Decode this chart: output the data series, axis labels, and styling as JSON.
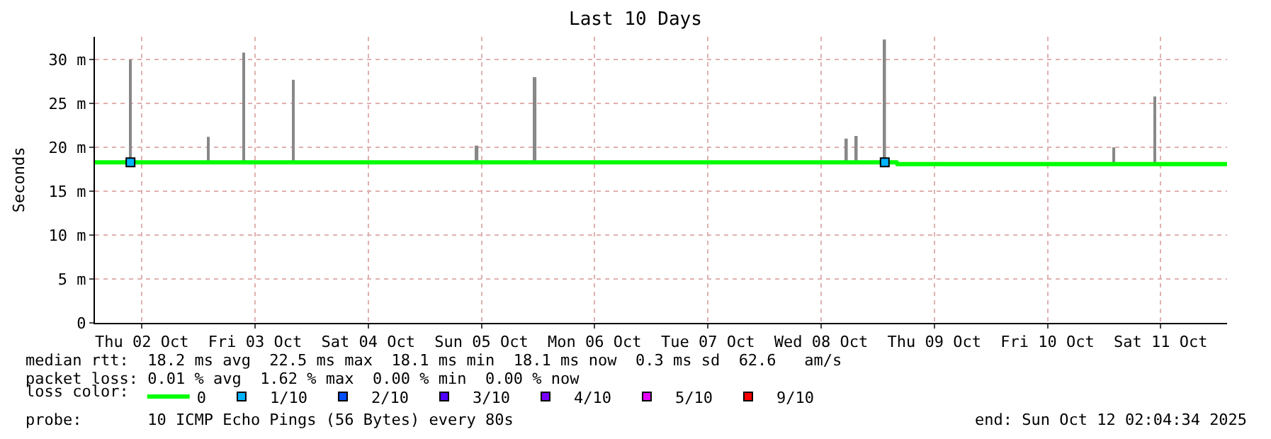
{
  "chart_data": {
    "type": "line",
    "title": "Last 10 Days",
    "ylabel": "Seconds",
    "legend_title": "loss color:",
    "xlim": [
      "2025-10-02T02:04",
      "2025-10-12T02:04"
    ],
    "xticks": [
      {
        "value": "2025-10-02T12:00",
        "label": "Thu 02 Oct"
      },
      {
        "value": "2025-10-03T12:00",
        "label": "Fri 03 Oct"
      },
      {
        "value": "2025-10-04T12:00",
        "label": "Sat 04 Oct"
      },
      {
        "value": "2025-10-05T12:00",
        "label": "Sun 05 Oct"
      },
      {
        "value": "2025-10-06T12:00",
        "label": "Mon 06 Oct"
      },
      {
        "value": "2025-10-07T12:00",
        "label": "Tue 07 Oct"
      },
      {
        "value": "2025-10-08T12:00",
        "label": "Wed 08 Oct"
      },
      {
        "value": "2025-10-09T12:00",
        "label": "Thu 09 Oct"
      },
      {
        "value": "2025-10-10T12:00",
        "label": "Fri 10 Oct"
      },
      {
        "value": "2025-10-11T12:00",
        "label": "Sat 11 Oct"
      }
    ],
    "ylim": [
      0,
      32.6
    ],
    "yticks": [
      {
        "value": 0,
        "label": "0"
      },
      {
        "value": 5,
        "label": "5 m"
      },
      {
        "value": 10,
        "label": "10 m"
      },
      {
        "value": 15,
        "label": "15 m"
      },
      {
        "value": 20,
        "label": "20 m"
      },
      {
        "value": 25,
        "label": "25 m"
      },
      {
        "value": 30,
        "label": "30 m"
      }
    ],
    "grid": true,
    "legend": "bottom",
    "series": [
      {
        "type": "bar",
        "color": "#888888",
        "x": [
          "2025-10-02T09:36",
          "2025-10-03T02:06",
          "2025-10-03T09:36",
          "2025-10-03T20:06",
          "2025-10-05T11:06",
          "2025-10-05T23:24",
          "2025-10-08T17:24",
          "2025-10-08T19:30",
          "2025-10-09T01:30",
          "2025-10-11T02:06",
          "2025-10-11T10:48"
        ],
        "base": [
          18.3,
          18.3,
          18.3,
          18.3,
          18.3,
          18.3,
          18.3,
          18.3,
          18.3,
          18.1,
          18.1
        ],
        "values": [
          11.7,
          2.9,
          12.5,
          9.4,
          1.9,
          9.7,
          2.7,
          3.0,
          14.0,
          1.9,
          7.7
        ]
      },
      {
        "name": "0",
        "color": "#00ff00",
        "x": [
          "2025-10-02T02:04",
          "2025-10-09T04:00",
          "2025-10-09T04:10",
          "2025-10-12T02:04"
        ],
        "values": [
          18.3,
          18.3,
          18.1,
          18.1
        ]
      },
      {
        "name": "1/10",
        "type": "scatter",
        "marker": "square",
        "color": "#00b4ff",
        "x": [
          "2025-10-02T09:36",
          "2025-10-09T01:30"
        ],
        "values": [
          18.3,
          18.3
        ]
      },
      {
        "name": "2/10",
        "type": "scatter",
        "marker": "square",
        "color": "#0050ff"
      },
      {
        "name": "3/10",
        "type": "scatter",
        "marker": "square",
        "color": "#5000ff"
      },
      {
        "name": "4/10",
        "type": "scatter",
        "marker": "square",
        "color": "#7800ff"
      },
      {
        "name": "5/10",
        "type": "scatter",
        "marker": "square",
        "color": "#e600ff"
      },
      {
        "name": "9/10",
        "type": "scatter",
        "marker": "square",
        "color": "#ff0000"
      }
    ],
    "annotations": [
      "median rtt:  18.2 ms avg  22.5 ms max  18.1 ms min  18.1 ms now  0.3 ms sd  62.6   am/s",
      "packet loss: 0.01 % avg  1.62 % max  0.00 % min  0.00 % now",
      "probe:       10 ICMP Echo Pings (56 Bytes) every 80s",
      "end: Sun Oct 12 02:04:34 2025"
    ]
  }
}
